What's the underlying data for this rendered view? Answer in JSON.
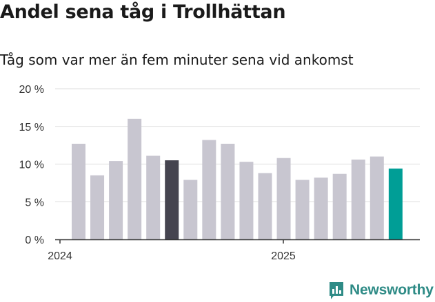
{
  "page": {
    "title": "Andel sena tåg i Trollhättan",
    "subtitle": "Tåg som var mer än fem minuter sena vid ankomst",
    "brand": "Newsworthy"
  },
  "colors": {
    "bar_default": "#c8c6d0",
    "bar_highlight_dark": "#45444f",
    "bar_highlight_accent": "#009e96",
    "grid": "#dddddd",
    "axis": "#333333",
    "brand": "#2e8b86"
  },
  "chart_data": {
    "type": "bar",
    "title": "Andel sena tåg i Trollhättan",
    "subtitle": "Tåg som var mer än fem minuter sena vid ankomst",
    "xlabel": "",
    "ylabel": "",
    "ylim": [
      0,
      20
    ],
    "yticks": [
      0,
      5,
      10,
      15,
      20
    ],
    "ytick_labels": [
      "0 %",
      "5 %",
      "10 %",
      "15 %",
      "20 %"
    ],
    "xtick_labels": [
      "2024",
      "2025"
    ],
    "grid": true,
    "legend": "none",
    "values": [
      12.7,
      8.5,
      10.4,
      16.0,
      11.1,
      10.5,
      7.9,
      13.2,
      12.7,
      10.3,
      8.8,
      10.8,
      7.9,
      8.2,
      8.7,
      10.6,
      11.0,
      9.4
    ],
    "highlight": {
      "5": "dark",
      "17": "accent"
    }
  }
}
